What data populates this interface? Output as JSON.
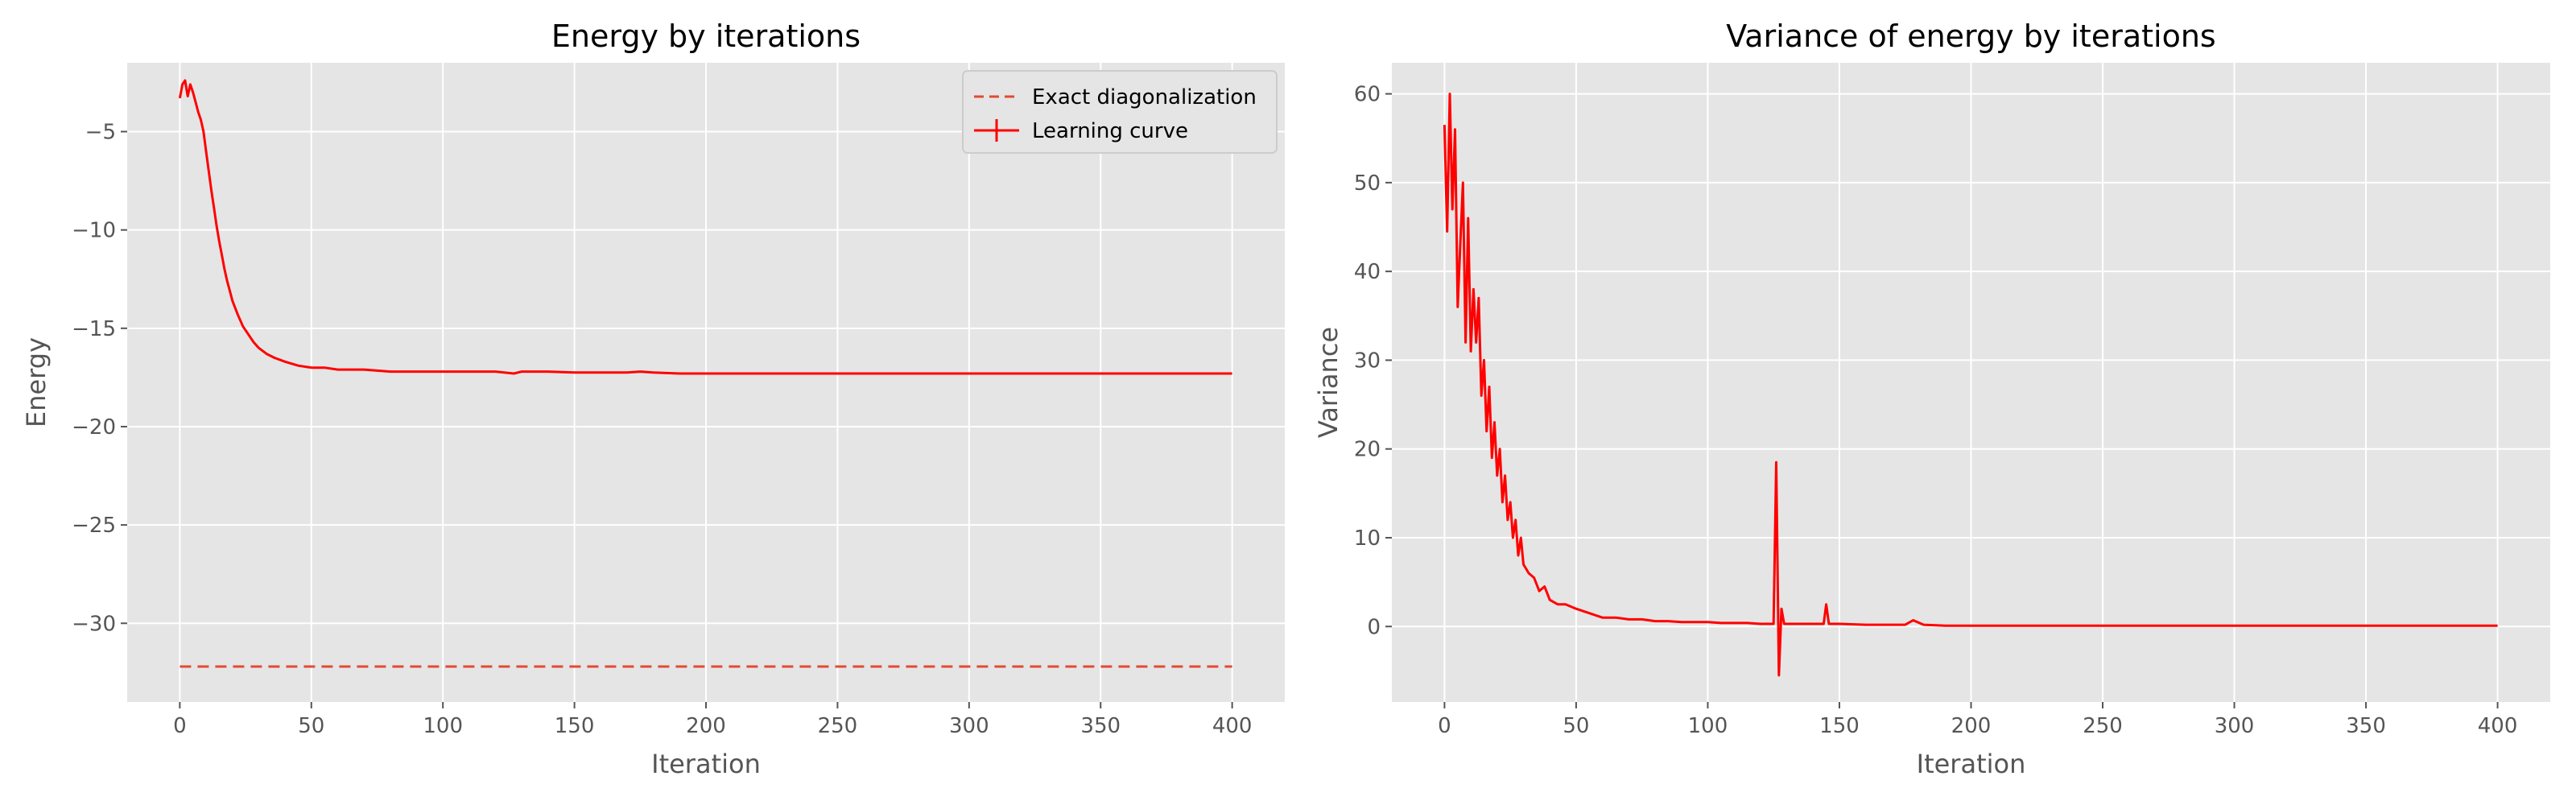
{
  "colors": {
    "background": "#e5e5e5",
    "grid": "#ffffff",
    "tick_text": "#555555",
    "series": "#ff0000",
    "exact_line": "#e24a33"
  },
  "chart_data": [
    {
      "type": "line",
      "title": "Energy by iterations",
      "xlabel": "Iteration",
      "ylabel": "Energy",
      "xlim": [
        -20,
        420
      ],
      "ylim": [
        -34,
        -1.5
      ],
      "xticks": [
        0,
        50,
        100,
        150,
        200,
        250,
        300,
        350,
        400
      ],
      "yticks": [
        -30,
        -25,
        -20,
        -15,
        -10,
        -5
      ],
      "ytick_labels": [
        "−30",
        "−25",
        "−20",
        "−15",
        "−10",
        "−5"
      ],
      "grid": true,
      "legend_position": "top-right",
      "series": [
        {
          "name": "Exact diagonalization",
          "style": "dashed",
          "color": "#e24a33",
          "x": [
            0,
            400
          ],
          "y": [
            -32.2,
            -32.2
          ]
        },
        {
          "name": "Learning curve",
          "style": "solid",
          "color": "#ff0000",
          "x": [
            0,
            1,
            2,
            3,
            4,
            5,
            6,
            7,
            8,
            9,
            10,
            11,
            12,
            13,
            14,
            15,
            16,
            17,
            18,
            19,
            20,
            22,
            24,
            26,
            28,
            30,
            33,
            36,
            40,
            45,
            50,
            55,
            60,
            65,
            70,
            80,
            90,
            100,
            110,
            120,
            127,
            130,
            140,
            150,
            160,
            170,
            175,
            180,
            190,
            200,
            225,
            250,
            275,
            300,
            325,
            350,
            375,
            400
          ],
          "y": [
            -3.3,
            -2.6,
            -2.4,
            -3.2,
            -2.6,
            -3.0,
            -3.5,
            -4.0,
            -4.4,
            -5.0,
            -6.0,
            -7.0,
            -8.0,
            -8.9,
            -9.8,
            -10.6,
            -11.3,
            -12.0,
            -12.6,
            -13.1,
            -13.6,
            -14.3,
            -14.9,
            -15.3,
            -15.7,
            -16.0,
            -16.3,
            -16.5,
            -16.7,
            -16.9,
            -17.0,
            -17.0,
            -17.1,
            -17.1,
            -17.1,
            -17.2,
            -17.2,
            -17.2,
            -17.2,
            -17.2,
            -17.3,
            -17.2,
            -17.2,
            -17.25,
            -17.25,
            -17.25,
            -17.2,
            -17.25,
            -17.3,
            -17.3,
            -17.3,
            -17.3,
            -17.3,
            -17.3,
            -17.3,
            -17.3,
            -17.3,
            -17.3
          ]
        }
      ]
    },
    {
      "type": "line",
      "title": "Variance of energy by iterations",
      "xlabel": "Iteration",
      "ylabel": "Variance",
      "xlim": [
        -20,
        420
      ],
      "ylim": [
        -8.5,
        63.5
      ],
      "xticks": [
        0,
        50,
        100,
        150,
        200,
        250,
        300,
        350,
        400
      ],
      "yticks": [
        0,
        10,
        20,
        30,
        40,
        50,
        60
      ],
      "ytick_labels": [
        "0",
        "10",
        "20",
        "30",
        "40",
        "50",
        "60"
      ],
      "grid": true,
      "series": [
        {
          "color": "#ff0000",
          "x": [
            0,
            1,
            2,
            3,
            4,
            5,
            6,
            7,
            8,
            9,
            10,
            11,
            12,
            13,
            14,
            15,
            16,
            17,
            18,
            19,
            20,
            21,
            22,
            23,
            24,
            25,
            26,
            27,
            28,
            29,
            30,
            32,
            34,
            36,
            38,
            40,
            43,
            46,
            50,
            55,
            60,
            65,
            70,
            75,
            80,
            85,
            90,
            95,
            100,
            105,
            110,
            115,
            120,
            125,
            126,
            127,
            128,
            129,
            130,
            135,
            140,
            144,
            145,
            146,
            150,
            160,
            170,
            175,
            178,
            182,
            190,
            200,
            225,
            250,
            275,
            300,
            325,
            350,
            375,
            400
          ],
          "y": [
            56.5,
            44.5,
            60,
            47,
            56,
            36,
            43,
            50,
            32,
            46,
            31,
            38,
            32,
            37,
            26,
            30,
            22,
            27,
            19,
            23,
            17,
            20,
            14,
            17,
            12,
            14,
            10,
            12,
            8,
            10,
            7,
            6,
            5.5,
            4,
            4.5,
            3,
            2.5,
            2.5,
            2,
            1.5,
            1,
            1,
            0.8,
            0.8,
            0.6,
            0.6,
            0.5,
            0.5,
            0.5,
            0.4,
            0.4,
            0.4,
            0.3,
            0.3,
            18.5,
            -5.5,
            2,
            0.3,
            0.3,
            0.3,
            0.3,
            0.3,
            2.5,
            0.3,
            0.3,
            0.2,
            0.2,
            0.2,
            0.7,
            0.2,
            0.1,
            0.1,
            0.1,
            0.1,
            0.1,
            0.1,
            0.1,
            0.1,
            0.1,
            0.1
          ]
        }
      ]
    }
  ]
}
